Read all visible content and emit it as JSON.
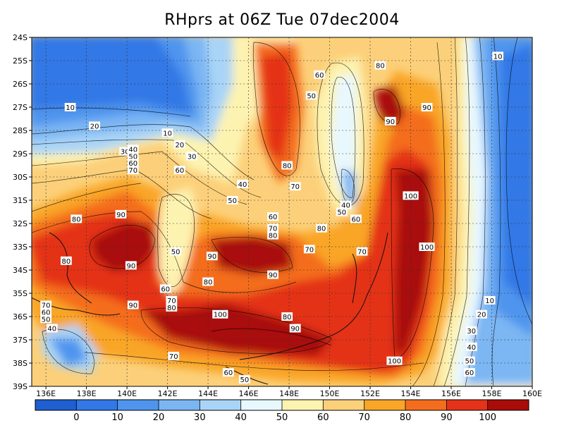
{
  "title": "RHprs at 06Z Tue 07dec2004",
  "map": {
    "lat_labels": [
      "24S",
      "25S",
      "26S",
      "27S",
      "28S",
      "29S",
      "30S",
      "31S",
      "32S",
      "33S",
      "34S",
      "35S",
      "36S",
      "37S",
      "38S",
      "39S"
    ],
    "lon_labels": [
      "136E",
      "138E",
      "140E",
      "142E",
      "144E",
      "146E",
      "148E",
      "150E",
      "152E",
      "154E",
      "156E",
      "158E",
      "160E"
    ],
    "lon_range": [
      135.3,
      160
    ],
    "lat_range": [
      -24,
      -39
    ],
    "contour_labels": [
      {
        "v": "10",
        "lon": 158.3,
        "lat": -24.8
      },
      {
        "v": "80",
        "lon": 152.5,
        "lat": -25.2
      },
      {
        "v": "60",
        "lon": 149.5,
        "lat": -25.6
      },
      {
        "v": "50",
        "lon": 149.1,
        "lat": -26.5
      },
      {
        "v": "10",
        "lon": 137.2,
        "lat": -27.0
      },
      {
        "v": "90",
        "lon": 154.8,
        "lat": -27.0
      },
      {
        "v": "90",
        "lon": 153.0,
        "lat": -27.6
      },
      {
        "v": "20",
        "lon": 138.4,
        "lat": -27.8
      },
      {
        "v": "10",
        "lon": 142.0,
        "lat": -28.1
      },
      {
        "v": "20",
        "lon": 142.6,
        "lat": -28.6
      },
      {
        "v": "30",
        "lon": 139.9,
        "lat": -28.9
      },
      {
        "v": "40",
        "lon": 140.3,
        "lat": -28.8
      },
      {
        "v": "50",
        "lon": 140.3,
        "lat": -29.1
      },
      {
        "v": "60",
        "lon": 140.3,
        "lat": -29.4
      },
      {
        "v": "30",
        "lon": 143.2,
        "lat": -29.1
      },
      {
        "v": "70",
        "lon": 140.3,
        "lat": -29.7
      },
      {
        "v": "80",
        "lon": 147.9,
        "lat": -29.5
      },
      {
        "v": "60",
        "lon": 142.6,
        "lat": -29.7
      },
      {
        "v": "40",
        "lon": 145.7,
        "lat": -30.3
      },
      {
        "v": "70",
        "lon": 148.3,
        "lat": -30.4
      },
      {
        "v": "100",
        "lon": 154.0,
        "lat": -30.8
      },
      {
        "v": "50",
        "lon": 145.2,
        "lat": -31.0
      },
      {
        "v": "40",
        "lon": 150.8,
        "lat": -31.2
      },
      {
        "v": "50",
        "lon": 150.6,
        "lat": -31.5
      },
      {
        "v": "90",
        "lon": 139.7,
        "lat": -31.6
      },
      {
        "v": "80",
        "lon": 137.5,
        "lat": -31.8
      },
      {
        "v": "60",
        "lon": 147.2,
        "lat": -31.7
      },
      {
        "v": "60",
        "lon": 151.3,
        "lat": -31.8
      },
      {
        "v": "80",
        "lon": 149.6,
        "lat": -32.2
      },
      {
        "v": "70",
        "lon": 147.2,
        "lat": -32.2
      },
      {
        "v": "80",
        "lon": 147.2,
        "lat": -32.5
      },
      {
        "v": "100",
        "lon": 154.8,
        "lat": -33.0
      },
      {
        "v": "50",
        "lon": 142.4,
        "lat": -33.2
      },
      {
        "v": "70",
        "lon": 149.0,
        "lat": -33.1
      },
      {
        "v": "70",
        "lon": 151.6,
        "lat": -33.2
      },
      {
        "v": "90",
        "lon": 144.2,
        "lat": -33.4
      },
      {
        "v": "80",
        "lon": 137.0,
        "lat": -33.6
      },
      {
        "v": "90",
        "lon": 140.2,
        "lat": -33.8
      },
      {
        "v": "90",
        "lon": 147.2,
        "lat": -34.2
      },
      {
        "v": "80",
        "lon": 144.0,
        "lat": -34.5
      },
      {
        "v": "60",
        "lon": 141.9,
        "lat": -34.8
      },
      {
        "v": "70",
        "lon": 142.2,
        "lat": -35.3
      },
      {
        "v": "10",
        "lon": 157.9,
        "lat": -35.3
      },
      {
        "v": "90",
        "lon": 140.3,
        "lat": -35.5
      },
      {
        "v": "80",
        "lon": 142.2,
        "lat": -35.6
      },
      {
        "v": "70",
        "lon": 136.0,
        "lat": -35.5
      },
      {
        "v": "60",
        "lon": 136.0,
        "lat": -35.8
      },
      {
        "v": "50",
        "lon": 136.0,
        "lat": -36.1
      },
      {
        "v": "20",
        "lon": 157.5,
        "lat": -35.9
      },
      {
        "v": "100",
        "lon": 144.6,
        "lat": -35.9
      },
      {
        "v": "80",
        "lon": 147.9,
        "lat": -36.0
      },
      {
        "v": "90",
        "lon": 148.3,
        "lat": -36.5
      },
      {
        "v": "40",
        "lon": 136.3,
        "lat": -36.5
      },
      {
        "v": "30",
        "lon": 157.0,
        "lat": -36.6
      },
      {
        "v": "40",
        "lon": 157.0,
        "lat": -37.3
      },
      {
        "v": "70",
        "lon": 142.3,
        "lat": -37.7
      },
      {
        "v": "100",
        "lon": 153.2,
        "lat": -37.9
      },
      {
        "v": "50",
        "lon": 156.9,
        "lat": -37.9
      },
      {
        "v": "60",
        "lon": 145.0,
        "lat": -38.4
      },
      {
        "v": "60",
        "lon": 156.9,
        "lat": -38.4
      },
      {
        "v": "50",
        "lon": 145.8,
        "lat": -38.7
      }
    ]
  },
  "colorbar": {
    "colors": [
      "#1e5fd1",
      "#3278e6",
      "#4f95ee",
      "#7bb6f3",
      "#a9d4f7",
      "#e8f8ff",
      "#fdf3b1",
      "#fcd07a",
      "#f9a528",
      "#f46d1e",
      "#e43319",
      "#a90c09"
    ],
    "labels": [
      "0",
      "10",
      "20",
      "30",
      "40",
      "50",
      "60",
      "70",
      "80",
      "90",
      "100"
    ]
  }
}
